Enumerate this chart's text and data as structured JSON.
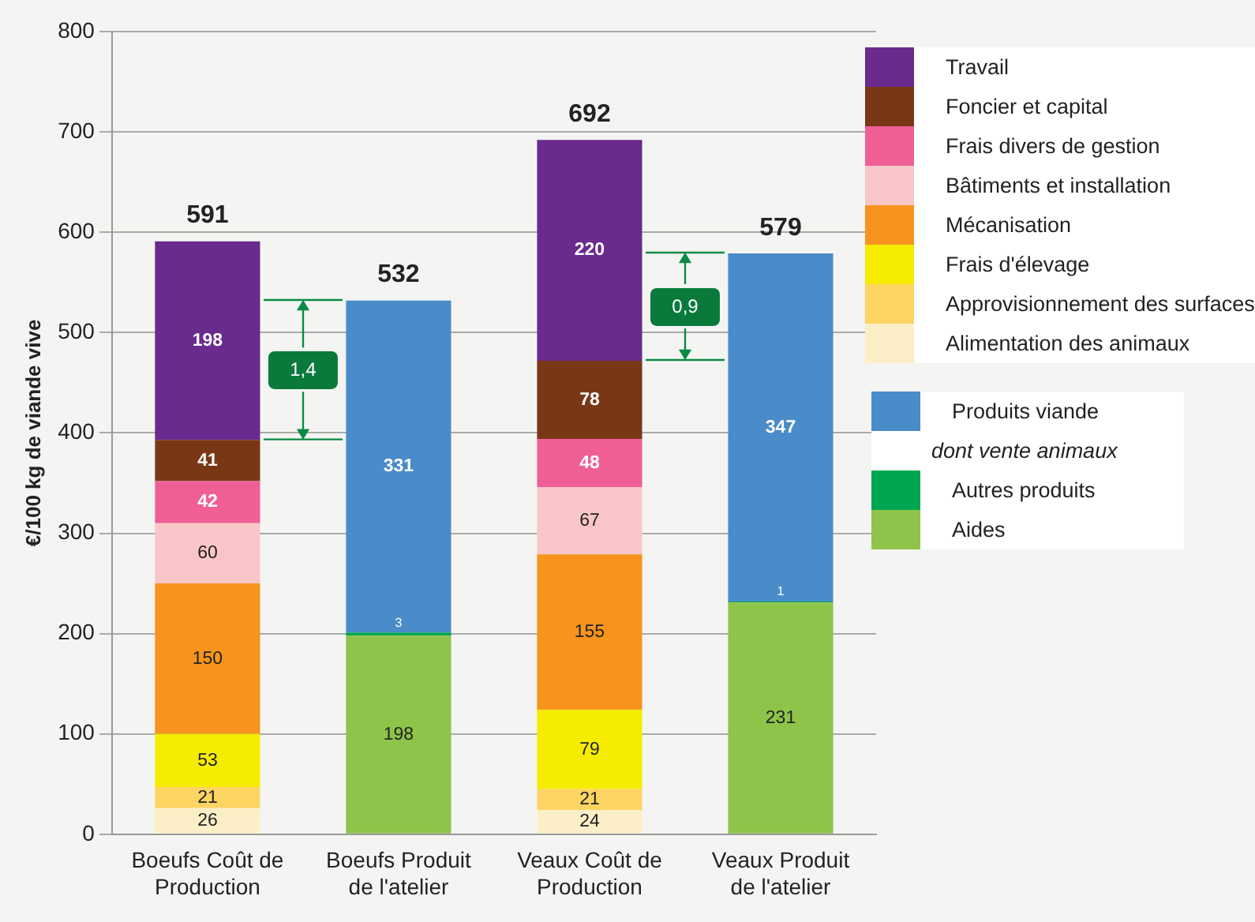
{
  "chart_data": {
    "type": "bar",
    "stacked": true,
    "ylabel": "€/100 kg de viande vive",
    "categories": [
      "Boeufs Coût de Production",
      "Boeufs Produit de l'atelier",
      "Veaux Coût de Production",
      "Veaux Produit de l'atelier"
    ],
    "series": [
      {
        "name": "Alimentation des animaux",
        "color": "#fcefc7",
        "values": [
          26,
          null,
          24,
          null
        ]
      },
      {
        "name": "Approvisionnement des surfaces",
        "color": "#fdd462",
        "values": [
          21,
          null,
          21,
          null
        ]
      },
      {
        "name": "Frais d'élevage",
        "color": "#f5ec00",
        "values": [
          53,
          null,
          79,
          null
        ]
      },
      {
        "name": "Mécanisation",
        "color": "#f7941d",
        "values": [
          150,
          null,
          155,
          null
        ]
      },
      {
        "name": "Bâtiments et installation",
        "color": "#f8c6c8",
        "values": [
          60,
          null,
          67,
          null
        ]
      },
      {
        "name": "Frais divers de gestion",
        "color": "#ef5f95",
        "values": [
          42,
          null,
          48,
          null
        ]
      },
      {
        "name": "Foncier et capital",
        "color": "#7a3716",
        "values": [
          41,
          null,
          78,
          null
        ]
      },
      {
        "name": "Travail",
        "color": "#6a2a8e",
        "values": [
          198,
          null,
          220,
          null
        ]
      },
      {
        "name": "Aides",
        "color": "#8dc449",
        "values": [
          null,
          198,
          null,
          231
        ]
      },
      {
        "name": "Autres produits",
        "color": "#00a651",
        "values": [
          null,
          3,
          null,
          1
        ]
      },
      {
        "name": "Produits viande",
        "color": "#4a8bc9",
        "values": [
          null,
          331,
          null,
          347
        ]
      }
    ],
    "totals": [
      "591",
      "532",
      "692",
      "579"
    ],
    "data_labels": true,
    "annotations": [
      "1,4",
      "0,9",
      "dont vente animaux"
    ],
    "ylim": [
      0,
      800
    ],
    "yticks": [
      0,
      100,
      200,
      300,
      400,
      500,
      600,
      700,
      800
    ],
    "grid": "y",
    "legend": "right"
  }
}
